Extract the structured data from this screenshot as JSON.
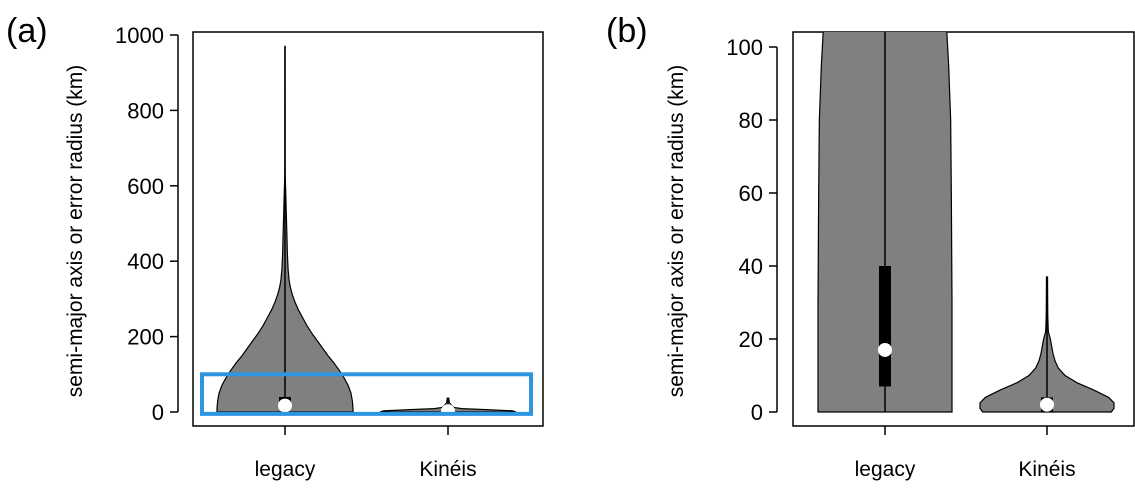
{
  "chart_data": [
    {
      "panel_label": "(a)",
      "type": "violin",
      "categories": [
        "legacy",
        "Kinéis"
      ],
      "ylabel": "semi-major axis or error radius (km)",
      "ylim": [
        0,
        1000
      ],
      "yticks": [
        "0",
        "200",
        "400",
        "600",
        "800",
        "1000"
      ],
      "ytick_values": [
        0,
        200,
        400,
        600,
        800,
        1000
      ],
      "box_color": "#808080",
      "violin_color": "#808080",
      "median_color": "#ffffff",
      "series": [
        {
          "category": "legacy",
          "min": 0,
          "q1": 7,
          "median": 17,
          "q3": 40,
          "whisker_high": 88,
          "max": 970,
          "density_profile": [
            [
              0,
              1.0
            ],
            [
              10,
              1.0
            ],
            [
              30,
              0.99
            ],
            [
              50,
              0.97
            ],
            [
              70,
              0.93
            ],
            [
              90,
              0.87
            ],
            [
              110,
              0.8
            ],
            [
              130,
              0.72
            ],
            [
              150,
              0.63
            ],
            [
              170,
              0.55
            ],
            [
              190,
              0.47
            ],
            [
              210,
              0.39
            ],
            [
              230,
              0.32
            ],
            [
              250,
              0.26
            ],
            [
              270,
              0.2
            ],
            [
              290,
              0.15
            ],
            [
              310,
              0.11
            ],
            [
              330,
              0.08
            ],
            [
              350,
              0.06
            ],
            [
              380,
              0.045
            ],
            [
              420,
              0.035
            ],
            [
              470,
              0.028
            ],
            [
              520,
              0.02
            ],
            [
              560,
              0.014
            ],
            [
              600,
              0.008
            ],
            [
              620,
              0.004
            ],
            [
              660,
              0.002
            ],
            [
              970,
              0.001
            ]
          ]
        },
        {
          "category": "Kinéis",
          "min": 0,
          "q1": 0,
          "median": 2,
          "q3": 4,
          "whisker_high": 6,
          "max": 37,
          "density_profile": [
            [
              0,
              1.0
            ],
            [
              3,
              0.95
            ],
            [
              6,
              0.6
            ],
            [
              9,
              0.2
            ],
            [
              12,
              0.09
            ],
            [
              16,
              0.06
            ],
            [
              20,
              0.04
            ],
            [
              25,
              0.02
            ],
            [
              37,
              0.01
            ]
          ]
        }
      ],
      "highlight_box": {
        "color": "#2e96e0",
        "y_range": [
          -5,
          100
        ]
      }
    },
    {
      "panel_label": "(b)",
      "type": "violin",
      "categories": [
        "legacy",
        "Kinéis"
      ],
      "ylabel": "semi-major axis or error radius (km)",
      "ylim": [
        0,
        105
      ],
      "yticks": [
        "0",
        "20",
        "40",
        "60",
        "80",
        "100"
      ],
      "ytick_values": [
        0,
        20,
        40,
        60,
        80,
        100
      ],
      "series": [
        {
          "category": "legacy",
          "min": 0,
          "q1": 7,
          "median": 17,
          "q3": 40,
          "whisker_high": 88,
          "max": 970,
          "density_profile": [
            [
              0,
              1.0
            ],
            [
              30,
              1.0
            ],
            [
              60,
              0.99
            ],
            [
              80,
              0.98
            ],
            [
              95,
              0.95
            ],
            [
              105,
              0.92
            ]
          ]
        },
        {
          "category": "Kinéis",
          "min": 0,
          "q1": 0,
          "median": 2,
          "q3": 4,
          "whisker_high": 6,
          "max": 37,
          "density_profile": [
            [
              0,
              0.96
            ],
            [
              1,
              1.0
            ],
            [
              2.5,
              1.0
            ],
            [
              4,
              0.92
            ],
            [
              6,
              0.7
            ],
            [
              8,
              0.45
            ],
            [
              10,
              0.27
            ],
            [
              12,
              0.17
            ],
            [
              14,
              0.12
            ],
            [
              16,
              0.09
            ],
            [
              18,
              0.07
            ],
            [
              20,
              0.05
            ],
            [
              22,
              0.02
            ],
            [
              26,
              0.012
            ],
            [
              30,
              0.01
            ],
            [
              37,
              0.008
            ]
          ]
        }
      ]
    }
  ]
}
